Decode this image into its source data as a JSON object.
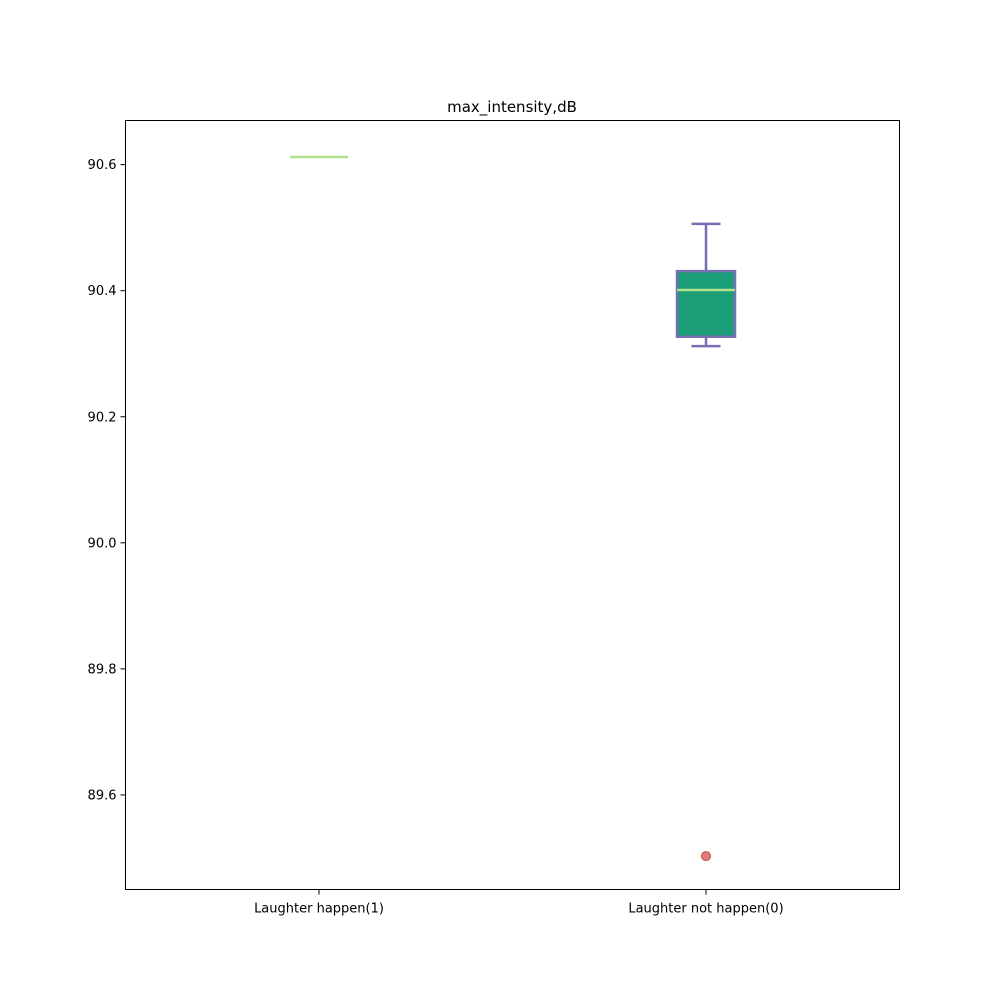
{
  "chart_data": {
    "type": "box",
    "title": "max_intensity,dB",
    "xlabel": "",
    "ylabel": "",
    "ylim": [
      89.45,
      90.67
    ],
    "yticks": [
      89.6,
      89.8,
      90.0,
      90.2,
      90.4,
      90.6
    ],
    "yticklabels": [
      "89.6",
      "89.8",
      "90.0",
      "90.2",
      "90.4",
      "90.6"
    ],
    "categories": [
      "Laughter happen(1)",
      "Laughter not happen(0)"
    ],
    "boxes": [
      {
        "category": "Laughter happen(1)",
        "min": 90.612,
        "q1": 90.612,
        "median": 90.612,
        "q3": 90.612,
        "max": 90.612,
        "outliers": []
      },
      {
        "category": "Laughter not happen(0)",
        "min": 90.312,
        "q1": 90.327,
        "median": 90.401,
        "q3": 90.431,
        "max": 90.506,
        "outliers": [
          89.503
        ]
      }
    ],
    "colors": {
      "box_fill": "#1b9e77",
      "box_edge": "#7570b3",
      "median": "#b2df8a",
      "outlier_fill": "#e7797b",
      "outlier_edge": "#b84a4c"
    },
    "grid": false,
    "legend": "none"
  }
}
